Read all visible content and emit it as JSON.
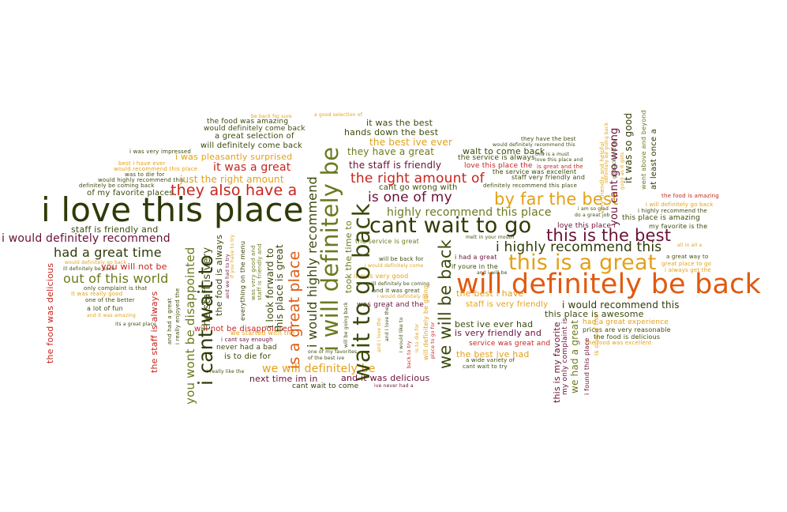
{
  "palette": {
    "olive": "#6b7a1e",
    "dark_green": "#3a4a0a",
    "maroon": "#6a1038",
    "orange": "#e05a10",
    "gold": "#e3a016",
    "red": "#c8241c",
    "dark_olive": "#2e3a06"
  },
  "phrases": [
    {
      "text": "i love this place",
      "color": "dark_olive"
    },
    {
      "text": "will definitely be back",
      "color": "orange"
    },
    {
      "text": "cant wait to go",
      "color": "dark_olive"
    },
    {
      "text": "this is a great",
      "color": "gold"
    },
    {
      "text": "i will definitely be",
      "color": "olive"
    },
    {
      "text": "wait to go back",
      "color": "dark_green"
    },
    {
      "text": "i cant wait to",
      "color": "dark_olive"
    },
    {
      "text": "is a great place",
      "color": "orange"
    },
    {
      "text": "they also have a",
      "color": "red"
    },
    {
      "text": "this is the best",
      "color": "maroon"
    },
    {
      "text": "i highly recommend this",
      "color": "dark_olive"
    },
    {
      "text": "by far the best",
      "color": "gold"
    },
    {
      "text": "the right amount of",
      "color": "red"
    },
    {
      "text": "is one of my",
      "color": "maroon"
    },
    {
      "text": "highly recommend this place",
      "color": "olive"
    },
    {
      "text": "had a great time",
      "color": "dark_olive"
    },
    {
      "text": "out of this world",
      "color": "olive"
    },
    {
      "text": "i would definitely recommend",
      "color": "maroon"
    },
    {
      "text": "staff is friendly and",
      "color": "dark_green"
    },
    {
      "text": "you will not be",
      "color": "red"
    },
    {
      "text": "it was a great",
      "color": "red"
    },
    {
      "text": "just the right amount",
      "color": "gold"
    },
    {
      "text": "of my favorite places",
      "color": "dark_green"
    },
    {
      "text": "it was the best",
      "color": "dark_green"
    },
    {
      "text": "hands down the best",
      "color": "dark_green"
    },
    {
      "text": "the best ive ever",
      "color": "gold"
    },
    {
      "text": "they have a great",
      "color": "olive"
    },
    {
      "text": "the staff is friendly",
      "color": "maroon"
    },
    {
      "text": "cant go wrong with",
      "color": "dark_green"
    },
    {
      "text": "we will definitely be",
      "color": "gold"
    },
    {
      "text": "and it was delicious",
      "color": "maroon"
    },
    {
      "text": "next time im in",
      "color": "maroon"
    },
    {
      "text": "cant wait to come",
      "color": "dark_olive"
    },
    {
      "text": "the food was amazing",
      "color": "dark_green"
    },
    {
      "text": "would definitely come back",
      "color": "dark_green"
    },
    {
      "text": "a great selection of",
      "color": "dark_green"
    },
    {
      "text": "will definitely come back",
      "color": "dark_green"
    },
    {
      "text": "i was pleasantly surprised",
      "color": "gold"
    },
    {
      "text": "i was very impressed",
      "color": "dark_green"
    },
    {
      "text": "best i have ever",
      "color": "gold"
    },
    {
      "text": "would recommend this place",
      "color": "gold"
    },
    {
      "text": "was to die for",
      "color": "dark_green"
    },
    {
      "text": "would highly recommend this",
      "color": "dark_green"
    },
    {
      "text": "definitely be coming back",
      "color": "dark_green"
    },
    {
      "text": "be back for sure",
      "color": "gold"
    },
    {
      "text": "a good selection of",
      "color": "gold"
    },
    {
      "text": "i would recommend this",
      "color": "dark_olive"
    },
    {
      "text": "this place is awesome",
      "color": "dark_green"
    },
    {
      "text": "had a great experience",
      "color": "gold"
    },
    {
      "text": "best ive ever had",
      "color": "dark_green"
    },
    {
      "text": "is very friendly and",
      "color": "maroon"
    },
    {
      "text": "service was great and",
      "color": "red"
    },
    {
      "text": "the best ive had",
      "color": "gold"
    },
    {
      "text": "the best i have",
      "color": "gold"
    },
    {
      "text": "staff is very friendly",
      "color": "gold"
    },
    {
      "text": "prices are very reasonable",
      "color": "dark_green"
    },
    {
      "text": "the food is delicious",
      "color": "dark_green"
    },
    {
      "text": "the food was excellent",
      "color": "gold"
    },
    {
      "text": "the food is amazing",
      "color": "red"
    },
    {
      "text": "i will definitely go back",
      "color": "gold"
    },
    {
      "text": "i highly recommend the",
      "color": "dark_green"
    },
    {
      "text": "this place is amazing",
      "color": "dark_green"
    },
    {
      "text": "my favorite is the",
      "color": "dark_green"
    },
    {
      "text": "a great way to",
      "color": "dark_green"
    },
    {
      "text": "great place to go",
      "color": "gold"
    },
    {
      "text": "i always get the",
      "color": "gold"
    },
    {
      "text": "the staff is always",
      "color": "red"
    },
    {
      "text": "the food was delicious",
      "color": "red"
    },
    {
      "text": "you wont be disappointed",
      "color": "olive"
    },
    {
      "text": "will not be disappointed",
      "color": "red"
    },
    {
      "text": "never had a bad",
      "color": "dark_green"
    },
    {
      "text": "is to die for",
      "color": "dark_green"
    },
    {
      "text": "i look forward to",
      "color": "dark_green"
    },
    {
      "text": "this place is great",
      "color": "dark_green"
    },
    {
      "text": "i would highly recommend",
      "color": "dark_green"
    },
    {
      "text": "we will be back",
      "color": "dark_green"
    },
    {
      "text": "the staff is very",
      "color": "dark_green"
    },
    {
      "text": "the food is always",
      "color": "dark_green"
    },
    {
      "text": "we started with the",
      "color": "gold"
    },
    {
      "text": "i cant say enough",
      "color": "maroon"
    },
    {
      "text": "everything on the menu",
      "color": "dark_green"
    },
    {
      "text": "was very good and",
      "color": "olive"
    },
    {
      "text": "staff is friendly and",
      "color": "olive"
    },
    {
      "text": "and we had to try",
      "color": "maroon"
    },
    {
      "text": "if you have to try",
      "color": "gold"
    },
    {
      "text": "took the time to",
      "color": "olive"
    },
    {
      "text": "the service is great",
      "color": "olive"
    },
    {
      "text": "will be back for",
      "color": "dark_green"
    },
    {
      "text": "i would definitely come",
      "color": "gold"
    },
    {
      "text": "it was very good",
      "color": "gold"
    },
    {
      "text": "will definitely be coming",
      "color": "dark_green"
    },
    {
      "text": "and it was great",
      "color": "dark_green"
    },
    {
      "text": "i would definitely go",
      "color": "gold"
    },
    {
      "text": "was great and the",
      "color": "maroon"
    },
    {
      "text": "i had a great",
      "color": "maroon"
    },
    {
      "text": "if youre in the",
      "color": "dark_green"
    },
    {
      "text": "melt in your mouth",
      "color": "dark_green"
    },
    {
      "text": "walt to come back",
      "color": "dark_green"
    },
    {
      "text": "the service is always",
      "color": "dark_green"
    },
    {
      "text": "love this place the",
      "color": "red"
    },
    {
      "text": "is great and the",
      "color": "red"
    },
    {
      "text": "staff very friendly and",
      "color": "dark_green"
    },
    {
      "text": "definitely recommend this place",
      "color": "dark_green"
    },
    {
      "text": "they have the best",
      "color": "dark_green"
    },
    {
      "text": "would definitely recommend this",
      "color": "dark_green"
    },
    {
      "text": "this is a must",
      "color": "dark_green"
    },
    {
      "text": "love this place and",
      "color": "dark_green"
    },
    {
      "text": "the service was excellent",
      "color": "dark_green"
    },
    {
      "text": "love this place i",
      "color": "maroon"
    },
    {
      "text": "i am so glad",
      "color": "dark_green"
    },
    {
      "text": "do a great job",
      "color": "dark_green"
    },
    {
      "text": "all in all a",
      "color": "gold"
    },
    {
      "text": "a wide variety of",
      "color": "dark_green"
    },
    {
      "text": "cant wait to try",
      "color": "dark_green"
    },
    {
      "text": "and i will be",
      "color": "dark_green"
    },
    {
      "text": "this is my favorite",
      "color": "maroon"
    },
    {
      "text": "my only complaint is",
      "color": "maroon"
    },
    {
      "text": "we had a great",
      "color": "olive"
    },
    {
      "text": "i found this place",
      "color": "maroon"
    },
    {
      "text": "you cant go wrong",
      "color": "maroon"
    },
    {
      "text": "it was so good",
      "color": "dark_olive"
    },
    {
      "text": "at least once a",
      "color": "dark_olive"
    },
    {
      "text": "went above and beyond",
      "color": "olive"
    },
    {
      "text": "very friendly and helpful",
      "color": "gold"
    },
    {
      "text": "definitely be going back",
      "color": "gold"
    },
    {
      "text": "is one of the",
      "color": "gold"
    },
    {
      "text": "good as it gets",
      "color": "gold"
    },
    {
      "text": "go back and try",
      "color": "dark_green"
    },
    {
      "text": "would definitely go back",
      "color": "gold"
    },
    {
      "text": "ill definitely be back",
      "color": "dark_green"
    },
    {
      "text": "it was really good",
      "color": "gold"
    },
    {
      "text": "one of the better",
      "color": "dark_green"
    },
    {
      "text": "only complaint is that",
      "color": "dark_green"
    },
    {
      "text": "a lot of fun",
      "color": "dark_green"
    },
    {
      "text": "and it was amazing",
      "color": "gold"
    },
    {
      "text": "its a great place",
      "color": "dark_green"
    },
    {
      "text": "and had a great",
      "color": "dark_green"
    },
    {
      "text": "i really enjoyed the",
      "color": "dark_green"
    },
    {
      "text": "i really like the",
      "color": "dark_green"
    },
    {
      "text": "ive never had a",
      "color": "maroon"
    },
    {
      "text": "one of my favorites",
      "color": "dark_green"
    },
    {
      "text": "of the best ive",
      "color": "dark_green"
    },
    {
      "text": "will be going back",
      "color": "dark_green"
    },
    {
      "text": "will definitely be going",
      "color": "gold"
    },
    {
      "text": "place to go for",
      "color": "red"
    },
    {
      "text": "back to try",
      "color": "red"
    },
    {
      "text": "is to die for",
      "color": "gold"
    },
    {
      "text": "and i love the",
      "color": "gold"
    },
    {
      "text": "and i love the",
      "color": "dark_green"
    },
    {
      "text": "i would like to",
      "color": "dark_green"
    }
  ]
}
